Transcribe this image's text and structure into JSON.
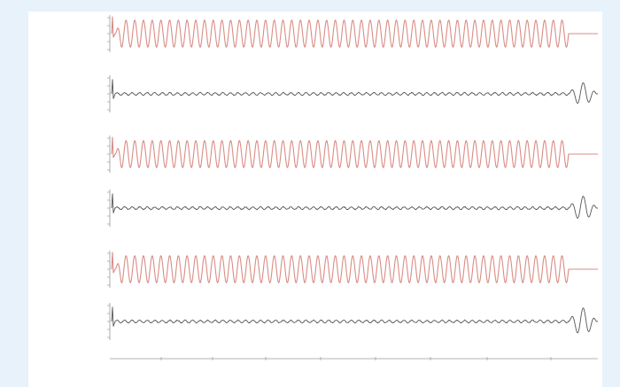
{
  "chart_data": {
    "type": "line",
    "title": "",
    "xlabel": "",
    "ylabel": "",
    "grid": false,
    "x_range": [
      0,
      1
    ],
    "x_tick_labels": [
      "",
      "",
      "",
      "",
      ""
    ],
    "x_axis_label": "",
    "line_colors": {
      "oscillation": "#d98c84",
      "residual": "#555555"
    },
    "tracks": [
      {
        "label": "",
        "color": "oscillation",
        "ylim": [
          -1,
          1
        ],
        "tick_labels": [
          "",
          "",
          "",
          "",
          ""
        ],
        "signal": {
          "kind": "sine",
          "amplitude": 0.85,
          "cycles": 52,
          "end": 0.94,
          "tail": "flat"
        }
      },
      {
        "label": "",
        "color": "residual",
        "ylim": [
          -1,
          1
        ],
        "tick_labels": [
          "",
          "",
          "",
          "",
          ""
        ],
        "signal": {
          "kind": "noise",
          "amplitude": 0.08,
          "cycles": 60,
          "end": 0.94,
          "tail": "burst",
          "tail_amplitude": 0.7
        }
      },
      {
        "label": "",
        "color": "oscillation",
        "ylim": [
          -1,
          1
        ],
        "tick_labels": [
          "",
          "",
          "",
          "",
          ""
        ],
        "signal": {
          "kind": "sine",
          "amplitude": 0.85,
          "cycles": 52,
          "end": 0.94,
          "tail": "flat"
        }
      },
      {
        "label": "",
        "color": "residual",
        "ylim": [
          -1,
          1
        ],
        "tick_labels": [
          "",
          "",
          "",
          "",
          ""
        ],
        "signal": {
          "kind": "noise",
          "amplitude": 0.08,
          "cycles": 60,
          "end": 0.94,
          "tail": "burst",
          "tail_amplitude": 0.75
        }
      },
      {
        "label": "",
        "color": "oscillation",
        "ylim": [
          -1,
          1
        ],
        "tick_labels": [
          "",
          "",
          "",
          "",
          ""
        ],
        "signal": {
          "kind": "sine",
          "amplitude": 0.85,
          "cycles": 52,
          "end": 0.94,
          "tail": "flat"
        }
      },
      {
        "label": "",
        "color": "residual",
        "ylim": [
          -1,
          1
        ],
        "tick_labels": [
          "",
          "",
          "",
          "",
          ""
        ],
        "signal": {
          "kind": "noise",
          "amplitude": 0.08,
          "cycles": 60,
          "end": 0.94,
          "tail": "burst",
          "tail_amplitude": 0.85
        }
      }
    ]
  }
}
